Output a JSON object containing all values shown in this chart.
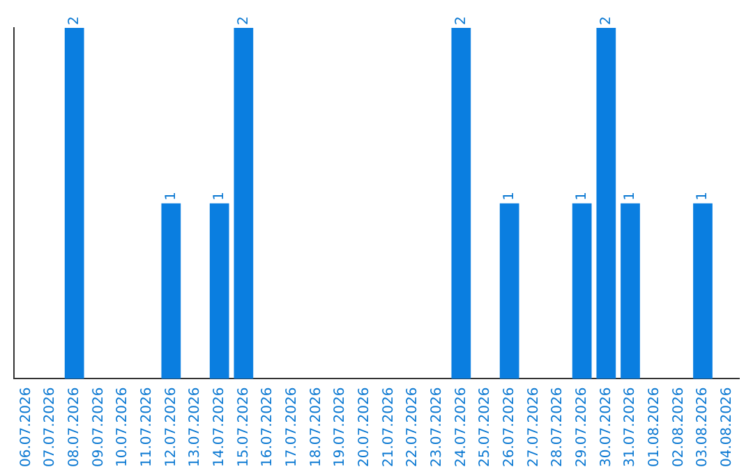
{
  "chart_data": {
    "type": "bar",
    "categories": [
      "06.07.2026",
      "07.07.2026",
      "08.07.2026",
      "09.07.2026",
      "10.07.2026",
      "11.07.2026",
      "12.07.2026",
      "13.07.2026",
      "14.07.2026",
      "15.07.2026",
      "16.07.2026",
      "17.07.2026",
      "18.07.2026",
      "19.07.2026",
      "20.07.2026",
      "21.07.2026",
      "22.07.2026",
      "23.07.2026",
      "24.07.2026",
      "25.07.2026",
      "26.07.2026",
      "27.07.2026",
      "28.07.2026",
      "29.07.2026",
      "30.07.2026",
      "31.07.2026",
      "01.08.2026",
      "02.08.2026",
      "03.08.2026",
      "04.08.2026"
    ],
    "values": [
      0,
      0,
      2,
      0,
      0,
      0,
      1,
      0,
      1,
      2,
      0,
      0,
      0,
      0,
      0,
      0,
      0,
      0,
      2,
      0,
      1,
      0,
      0,
      1,
      2,
      1,
      0,
      0,
      1,
      0
    ],
    "value_labels": [
      null,
      null,
      "2",
      null,
      null,
      null,
      "1",
      null,
      "1",
      "2",
      null,
      null,
      null,
      null,
      null,
      null,
      null,
      null,
      "2",
      null,
      "1",
      null,
      null,
      "1",
      "2",
      "1",
      null,
      null,
      "1",
      null
    ],
    "color": "#0a7ee0",
    "ylim": [
      0,
      2
    ],
    "tick_labels": "x",
    "grid": false,
    "legend": false
  }
}
